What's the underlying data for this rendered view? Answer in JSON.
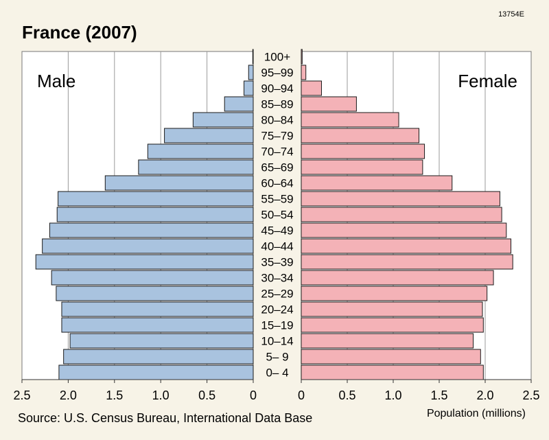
{
  "figure_code": "13754E",
  "source": "Source: U.S. Census Bureau, International Data Base",
  "colors": {
    "background": "#f7f3e7",
    "male_bar": "#a9c3df",
    "female_bar": "#f4b2b7",
    "bar_stroke": "#1a1a1a",
    "grid": "#9a9a9a"
  },
  "chart_data": {
    "type": "bar",
    "orientation": "horizontal-population-pyramid",
    "title": "France (2007)",
    "xlabel": "Population (millions)",
    "xlim": [
      0,
      2.5
    ],
    "male_ticks": [
      "2.5",
      "2.0",
      "1.5",
      "1.0",
      "0.5",
      "0"
    ],
    "female_ticks": [
      "0",
      "0.5",
      "1.0",
      "1.5",
      "2.0",
      "2.5"
    ],
    "grid": true,
    "categories": [
      "100+",
      "95–99",
      "90–94",
      "85–89",
      "80–84",
      "75–79",
      "70–74",
      "65–69",
      "60–64",
      "55–59",
      "50–54",
      "45–49",
      "40–44",
      "35–39",
      "30–34",
      "25–29",
      "20–24",
      "15–19",
      "10–14",
      "5– 9",
      "0– 4"
    ],
    "series": [
      {
        "name": "Male",
        "values": [
          0.005,
          0.05,
          0.1,
          0.31,
          0.65,
          0.96,
          1.14,
          1.24,
          1.6,
          2.11,
          2.12,
          2.2,
          2.28,
          2.35,
          2.18,
          2.13,
          2.07,
          2.07,
          1.98,
          2.05,
          2.1
        ]
      },
      {
        "name": "Female",
        "values": [
          0.01,
          0.05,
          0.22,
          0.6,
          1.06,
          1.28,
          1.34,
          1.32,
          1.64,
          2.16,
          2.18,
          2.23,
          2.28,
          2.3,
          2.09,
          2.02,
          1.97,
          1.98,
          1.87,
          1.95,
          1.98
        ]
      }
    ]
  }
}
